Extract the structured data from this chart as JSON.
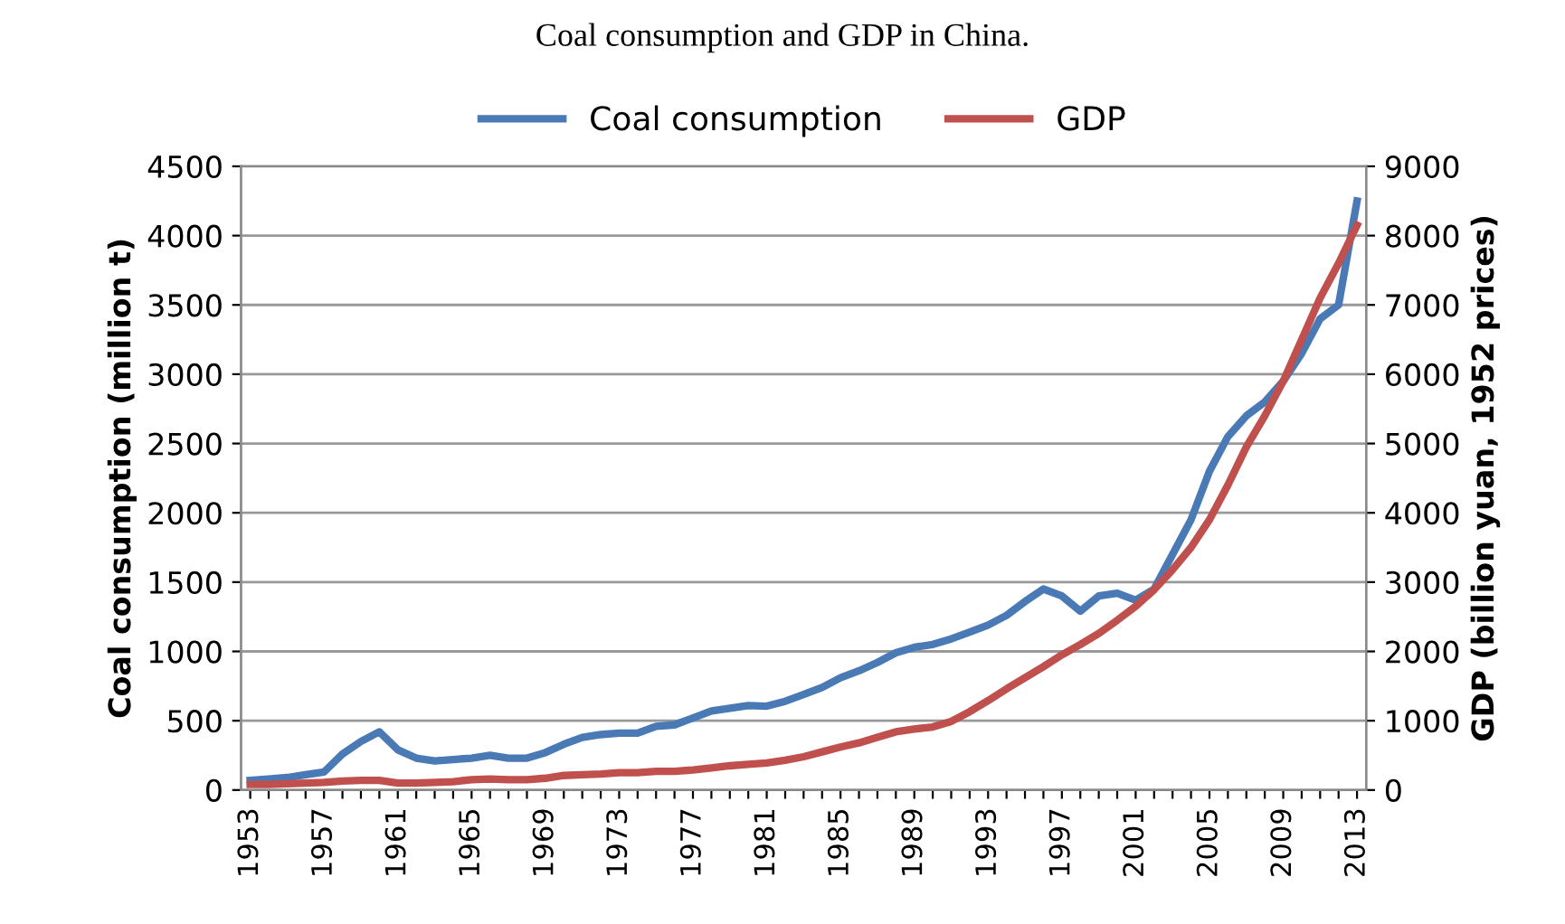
{
  "chart_data": {
    "type": "line",
    "title": "Coal consumption and GDP in China.",
    "ylabel": "Coal consumption (million t)",
    "y2label": "GDP (billion yuan, 1952 prices)",
    "categories": [
      "1953",
      null,
      null,
      null,
      "1957",
      null,
      null,
      null,
      "1961",
      null,
      null,
      null,
      "1965",
      null,
      null,
      null,
      "1969",
      null,
      null,
      null,
      "1973",
      null,
      null,
      null,
      "1977",
      null,
      null,
      null,
      "1981",
      null,
      null,
      null,
      "1985",
      null,
      null,
      null,
      "1989",
      null,
      null,
      null,
      "1993",
      null,
      null,
      null,
      "1997",
      null,
      null,
      null,
      "2001",
      null,
      null,
      null,
      "2005",
      null,
      null,
      null,
      "2009",
      null,
      null,
      null,
      "2013"
    ],
    "series": [
      {
        "name": "Coal consumption",
        "color": "#4a7ab5",
        "values": [
          70,
          80,
          90,
          110,
          130,
          260,
          350,
          420,
          290,
          230,
          210,
          220,
          230,
          250,
          230,
          230,
          270,
          330,
          380,
          400,
          410,
          410,
          460,
          470,
          520,
          570,
          590,
          610,
          605,
          640,
          690,
          740,
          810,
          860,
          920,
          990,
          1030,
          1050,
          1090,
          1140,
          1190,
          1260,
          1360,
          1450,
          1400,
          1290,
          1400,
          1420,
          1370,
          1450,
          1700,
          1950,
          2300,
          2550,
          2700,
          2800,
          2950,
          3150,
          3400,
          3500,
          4250
        ]
      },
      {
        "name": "GDP",
        "color": "#c0504d",
        "axis": "y2",
        "values": [
          80,
          80,
          90,
          100,
          110,
          130,
          140,
          140,
          100,
          100,
          110,
          120,
          150,
          160,
          150,
          150,
          170,
          210,
          220,
          230,
          250,
          250,
          270,
          270,
          290,
          320,
          350,
          370,
          390,
          430,
          480,
          550,
          620,
          680,
          760,
          840,
          880,
          910,
          990,
          1130,
          1290,
          1460,
          1620,
          1780,
          1950,
          2100,
          2260,
          2450,
          2650,
          2890,
          3180,
          3500,
          3900,
          4400,
          4950,
          5400,
          5900,
          6500,
          7100,
          7600,
          8150
        ]
      }
    ],
    "ylim": [
      0,
      4500
    ],
    "yticks": [
      0,
      500,
      1000,
      1500,
      2000,
      2500,
      3000,
      3500,
      4000,
      4500
    ],
    "y2lim": [
      0,
      9000
    ],
    "y2ticks": [
      0,
      1000,
      2000,
      3000,
      4000,
      5000,
      6000,
      7000,
      8000,
      9000
    ],
    "grid": "y",
    "legend": "top"
  }
}
